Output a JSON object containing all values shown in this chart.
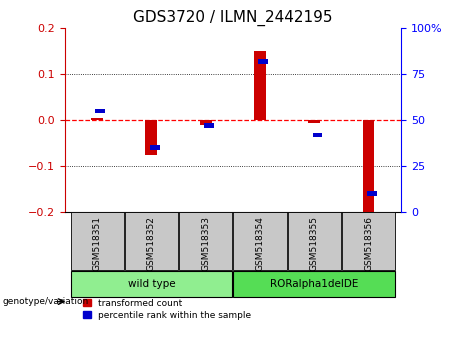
{
  "title": "GDS3720 / ILMN_2442195",
  "samples": [
    "GSM518351",
    "GSM518352",
    "GSM518353",
    "GSM518354",
    "GSM518355",
    "GSM518356"
  ],
  "red_values": [
    0.005,
    -0.075,
    -0.01,
    0.15,
    -0.005,
    -0.21
  ],
  "blue_values_pct": [
    55,
    35,
    47,
    82,
    42,
    10
  ],
  "ylim_left": [
    -0.2,
    0.2
  ],
  "ylim_right": [
    0,
    100
  ],
  "yticks_left": [
    -0.2,
    -0.1,
    0.0,
    0.1,
    0.2
  ],
  "yticks_right": [
    0,
    25,
    50,
    75,
    100
  ],
  "groups": [
    {
      "label": "wild type",
      "indices": [
        0,
        1,
        2
      ],
      "color": "#90EE90"
    },
    {
      "label": "RORalpha1delDE",
      "indices": [
        3,
        4,
        5
      ],
      "color": "#55DD55"
    }
  ],
  "red_color": "#CC0000",
  "blue_color": "#0000CC",
  "zero_line_color": "#FF0000",
  "background_label": "#C8C8C8",
  "legend_red": "transformed count",
  "legend_blue": "percentile rank within the sample",
  "genotype_label": "genotype/variation",
  "title_fontsize": 11,
  "tick_fontsize": 8,
  "label_fontsize": 7
}
